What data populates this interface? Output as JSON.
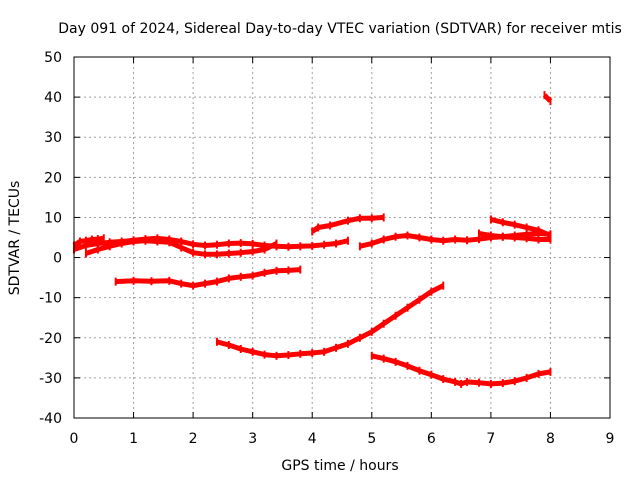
{
  "chart_data": {
    "type": "scatter",
    "title": "Day 091 of 2024, Sidereal Day-to-day VTEC variation (SDTVAR) for receiver mtis",
    "xlabel": "GPS time / hours",
    "ylabel": "SDTVAR / TECUs",
    "xlim": [
      0,
      9
    ],
    "ylim": [
      -40,
      50
    ],
    "xticks": [
      0,
      1,
      2,
      3,
      4,
      5,
      6,
      7,
      8,
      9
    ],
    "yticks": [
      -40,
      -30,
      -20,
      -10,
      0,
      10,
      20,
      30,
      40,
      50
    ],
    "grid": true,
    "legend": "none",
    "color": "#ff0000",
    "series": [
      {
        "x": [
          0.0,
          0.2,
          0.4,
          0.6,
          0.8,
          1.0,
          1.2,
          1.4,
          1.6,
          1.8,
          2.0,
          2.2,
          2.4,
          2.6,
          2.8,
          3.0,
          3.2,
          3.4,
          3.6,
          3.8,
          4.0,
          4.2,
          4.4,
          4.6
        ],
        "y": [
          2.0,
          3.0,
          3.5,
          3.8,
          4.0,
          4.3,
          4.6,
          4.8,
          4.5,
          4.0,
          3.3,
          3.0,
          3.2,
          3.5,
          3.6,
          3.4,
          3.0,
          2.8,
          2.7,
          2.8,
          2.9,
          3.2,
          3.5,
          4.2
        ]
      },
      {
        "x": [
          0.2,
          0.4,
          0.6,
          0.8,
          1.0,
          1.2,
          1.4,
          1.6,
          1.8,
          2.0,
          2.2,
          2.4,
          2.6,
          2.8,
          3.0,
          3.2,
          3.4
        ],
        "y": [
          1.0,
          2.0,
          2.8,
          3.5,
          4.0,
          4.2,
          4.0,
          3.8,
          2.5,
          1.2,
          0.8,
          0.8,
          1.0,
          1.2,
          1.5,
          2.0,
          3.5
        ]
      },
      {
        "x": [
          0.0,
          0.1,
          0.2,
          0.3,
          0.4,
          0.5
        ],
        "y": [
          3.0,
          4.0,
          4.2,
          4.5,
          4.6,
          4.8
        ]
      },
      {
        "x": [
          0.7,
          1.0,
          1.3,
          1.6,
          1.8,
          2.0,
          2.2,
          2.4,
          2.6,
          2.8,
          3.0,
          3.2,
          3.4,
          3.6,
          3.8
        ],
        "y": [
          -6.0,
          -5.8,
          -5.9,
          -5.8,
          -6.5,
          -7.0,
          -6.5,
          -6.0,
          -5.2,
          -4.8,
          -4.5,
          -3.8,
          -3.3,
          -3.2,
          -3.0
        ]
      },
      {
        "x": [
          4.0,
          4.1,
          4.3,
          4.6,
          4.8,
          5.0,
          5.2
        ],
        "y": [
          6.5,
          7.5,
          8.0,
          9.2,
          9.8,
          9.8,
          10.0
        ]
      },
      {
        "x": [
          4.8,
          5.0,
          5.2,
          5.4,
          5.6,
          5.8,
          6.0,
          6.2,
          6.4,
          6.6,
          6.8,
          7.0,
          7.2,
          7.4,
          7.6,
          7.8,
          8.0
        ],
        "y": [
          2.8,
          3.5,
          4.5,
          5.2,
          5.5,
          5.0,
          4.5,
          4.2,
          4.5,
          4.3,
          4.6,
          5.0,
          5.2,
          5.0,
          4.8,
          4.5,
          4.5
        ]
      },
      {
        "x": [
          7.0,
          7.2,
          7.4,
          7.6,
          7.8,
          8.0
        ],
        "y": [
          9.5,
          8.8,
          8.2,
          7.5,
          6.8,
          5.5
        ]
      },
      {
        "x": [
          6.8,
          7.0,
          7.2,
          7.4,
          7.6,
          7.8,
          8.0
        ],
        "y": [
          6.0,
          5.5,
          5.2,
          5.5,
          5.8,
          6.0,
          5.8
        ]
      },
      {
        "x": [
          7.9,
          8.0
        ],
        "y": [
          40.5,
          39.0
        ]
      },
      {
        "x": [
          2.4,
          2.6,
          2.8,
          3.0,
          3.2,
          3.4,
          3.6,
          3.8,
          4.0,
          4.2,
          4.4,
          4.6,
          4.8,
          5.0,
          5.2,
          5.4,
          5.6,
          5.8,
          6.0,
          6.2
        ],
        "y": [
          -21.0,
          -21.8,
          -22.8,
          -23.5,
          -24.2,
          -24.5,
          -24.3,
          -24.0,
          -23.8,
          -23.5,
          -22.5,
          -21.5,
          -20.0,
          -18.5,
          -16.5,
          -14.5,
          -12.5,
          -10.5,
          -8.5,
          -7.0
        ]
      },
      {
        "x": [
          5.0,
          5.2,
          5.4,
          5.6,
          5.8,
          6.0,
          6.2,
          6.4,
          6.5,
          6.6,
          6.8,
          7.0,
          7.2,
          7.4,
          7.6,
          7.8,
          8.0
        ],
        "y": [
          -24.5,
          -25.2,
          -26.0,
          -27.0,
          -28.2,
          -29.2,
          -30.3,
          -31.0,
          -31.5,
          -31.0,
          -31.2,
          -31.5,
          -31.3,
          -30.8,
          -30.0,
          -29.0,
          -28.5
        ]
      }
    ]
  }
}
